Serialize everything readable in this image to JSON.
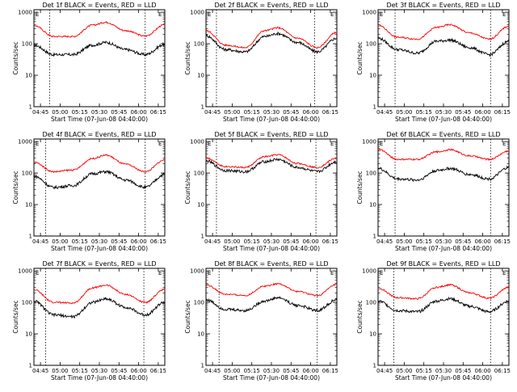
{
  "figure": {
    "background": "#ffffff",
    "events_color": "#000000",
    "lld_color": "#ff0000",
    "x_ticks": [
      "04:45",
      "05:00",
      "05:15",
      "05:30",
      "05:45",
      "06:00",
      "06:15"
    ],
    "y_ticks": [
      "1",
      "10",
      "100",
      "1000"
    ],
    "xlabel": "Start Time (07-Jun-08 04:40:00)",
    "ylabel": "Counts/sec",
    "marker": "E",
    "y_scale": "log",
    "ylim": [
      1,
      1200
    ]
  },
  "chart_data": [
    {
      "type": "line",
      "title": "Det 1f BLACK = Events, RED = LLD",
      "x": [
        "04:40",
        "04:55",
        "05:10",
        "05:25",
        "05:35",
        "05:50",
        "06:05",
        "06:20"
      ],
      "series": [
        {
          "name": "Events",
          "color": "#000000",
          "values": [
            90,
            45,
            45,
            90,
            110,
            65,
            45,
            95
          ]
        },
        {
          "name": "LLD",
          "color": "#ff0000",
          "values": [
            380,
            170,
            170,
            390,
            480,
            260,
            175,
            400
          ]
        }
      ],
      "vlines": [
        "04:52",
        "06:05"
      ],
      "ylim": [
        1,
        1200
      ]
    },
    {
      "type": "line",
      "title": "Det 2f BLACK = Events, RED = LLD",
      "x": [
        "04:40",
        "04:55",
        "05:10",
        "05:25",
        "05:35",
        "05:50",
        "06:05",
        "06:20"
      ],
      "series": [
        {
          "name": "Events",
          "color": "#000000",
          "values": [
            180,
            65,
            55,
            170,
            210,
            110,
            55,
            150
          ]
        },
        {
          "name": "LLD",
          "color": "#ff0000",
          "values": [
            260,
            90,
            75,
            260,
            320,
            150,
            75,
            230
          ]
        }
      ],
      "vlines": [
        "04:48",
        "06:03"
      ],
      "ylim": [
        1,
        1200
      ]
    },
    {
      "type": "line",
      "title": "Det 3f BLACK = Events, RED = LLD",
      "x": [
        "04:40",
        "04:55",
        "05:10",
        "05:25",
        "05:35",
        "05:50",
        "06:05",
        "06:20"
      ],
      "series": [
        {
          "name": "Events",
          "color": "#000000",
          "values": [
            150,
            65,
            50,
            120,
            130,
            75,
            45,
            120
          ]
        },
        {
          "name": "LLD",
          "color": "#ff0000",
          "values": [
            380,
            160,
            140,
            330,
            400,
            220,
            140,
            360
          ]
        }
      ],
      "vlines": [
        "04:53",
        "06:06"
      ],
      "ylim": [
        1,
        1200
      ]
    },
    {
      "type": "line",
      "title": "Det 4f BLACK = Events, RED = LLD",
      "x": [
        "04:40",
        "04:55",
        "05:10",
        "05:25",
        "05:35",
        "05:50",
        "06:05",
        "06:20"
      ],
      "series": [
        {
          "name": "Events",
          "color": "#000000",
          "values": [
            80,
            35,
            40,
            95,
            110,
            60,
            35,
            90
          ]
        },
        {
          "name": "LLD",
          "color": "#ff0000",
          "values": [
            220,
            110,
            125,
            290,
            370,
            190,
            110,
            260
          ]
        }
      ],
      "vlines": [
        "04:49",
        "06:05"
      ],
      "ylim": [
        1,
        1200
      ]
    },
    {
      "type": "line",
      "title": "Det 5f BLACK = Events, RED = LLD",
      "x": [
        "04:40",
        "04:55",
        "05:10",
        "05:25",
        "05:35",
        "05:50",
        "06:05",
        "06:20"
      ],
      "series": [
        {
          "name": "Events",
          "color": "#000000",
          "values": [
            240,
            120,
            110,
            230,
            270,
            150,
            110,
            230
          ]
        },
        {
          "name": "LLD",
          "color": "#ff0000",
          "values": [
            300,
            160,
            150,
            330,
            380,
            200,
            150,
            300
          ]
        }
      ],
      "vlines": [
        "04:48",
        "06:04"
      ],
      "ylim": [
        1,
        1200
      ]
    },
    {
      "type": "line",
      "title": "Det 6f BLACK = Events, RED = LLD",
      "x": [
        "04:40",
        "04:55",
        "05:10",
        "05:25",
        "05:35",
        "05:50",
        "06:05",
        "06:20"
      ],
      "series": [
        {
          "name": "Events",
          "color": "#000000",
          "values": [
            140,
            65,
            60,
            120,
            140,
            90,
            65,
            150
          ]
        },
        {
          "name": "LLD",
          "color": "#ff0000",
          "values": [
            570,
            270,
            270,
            470,
            550,
            350,
            270,
            500
          ]
        }
      ],
      "vlines": [
        "04:53",
        "06:06"
      ],
      "ylim": [
        1,
        1200
      ]
    },
    {
      "type": "line",
      "title": "Det 7f BLACK = Events, RED = LLD",
      "x": [
        "04:40",
        "04:55",
        "05:10",
        "05:25",
        "05:35",
        "05:50",
        "06:05",
        "06:20"
      ],
      "series": [
        {
          "name": "Events",
          "color": "#000000",
          "values": [
            110,
            40,
            35,
            100,
            130,
            70,
            40,
            100
          ]
        },
        {
          "name": "LLD",
          "color": "#ff0000",
          "values": [
            250,
            100,
            95,
            290,
            350,
            180,
            100,
            260
          ]
        }
      ],
      "vlines": [
        "04:49",
        "06:04"
      ],
      "ylim": [
        1,
        1200
      ]
    },
    {
      "type": "line",
      "title": "Det 8f BLACK = Events, RED = LLD",
      "x": [
        "04:40",
        "04:55",
        "05:10",
        "05:25",
        "05:35",
        "05:50",
        "06:05",
        "06:20"
      ],
      "series": [
        {
          "name": "Events",
          "color": "#000000",
          "values": [
            120,
            60,
            55,
            110,
            140,
            80,
            55,
            120
          ]
        },
        {
          "name": "LLD",
          "color": "#ff0000",
          "values": [
            360,
            180,
            165,
            330,
            390,
            220,
            165,
            370
          ]
        }
      ],
      "vlines": [
        "04:50",
        "06:05"
      ],
      "ylim": [
        1,
        1200
      ]
    },
    {
      "type": "line",
      "title": "Det 9f BLACK = Events, RED = LLD",
      "x": [
        "04:40",
        "04:55",
        "05:10",
        "05:25",
        "05:35",
        "05:50",
        "06:05",
        "06:20"
      ],
      "series": [
        {
          "name": "Events",
          "color": "#000000",
          "values": [
            110,
            55,
            50,
            110,
            130,
            75,
            50,
            110
          ]
        },
        {
          "name": "LLD",
          "color": "#ff0000",
          "values": [
            280,
            140,
            130,
            300,
            360,
            200,
            135,
            300
          ]
        }
      ],
      "vlines": [
        "04:52",
        "06:06"
      ],
      "ylim": [
        1,
        1200
      ]
    }
  ]
}
